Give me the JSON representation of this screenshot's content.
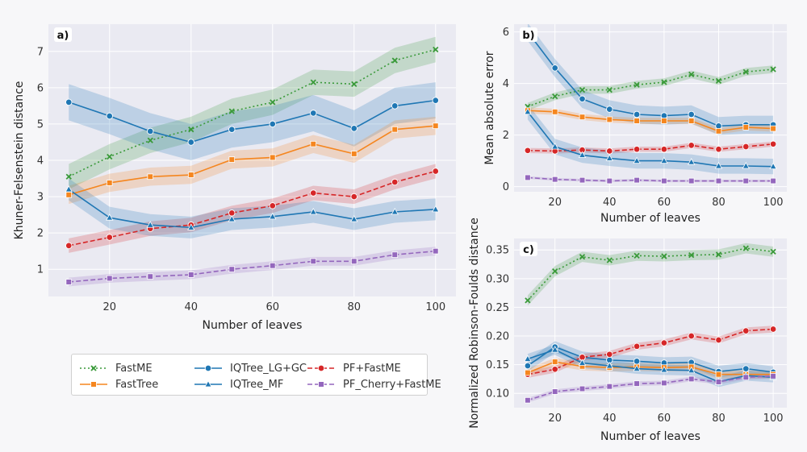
{
  "chart_data": [
    {
      "panel": "a)",
      "type": "line",
      "xlabel": "Number of leaves",
      "ylabel": "Khuner-Felsenstein distance",
      "xlim": [
        5,
        105
      ],
      "ylim": [
        0.25,
        7.75
      ],
      "xticks": [
        20,
        40,
        60,
        80,
        100
      ],
      "yticks": [
        1,
        2,
        3,
        4,
        5,
        6,
        7
      ],
      "grid": true,
      "x": [
        10,
        20,
        30,
        40,
        50,
        60,
        70,
        80,
        90,
        100
      ],
      "series": [
        {
          "name": "FastME",
          "values": [
            3.55,
            4.1,
            4.55,
            4.85,
            5.35,
            5.6,
            6.15,
            6.1,
            6.75,
            7.05
          ],
          "band": 0.35
        },
        {
          "name": "IQTree_LG+GC",
          "values": [
            5.6,
            5.22,
            4.8,
            4.5,
            4.85,
            5.0,
            5.3,
            4.88,
            5.5,
            5.65
          ],
          "band": 0.5
        },
        {
          "name": "PF+FastME",
          "values": [
            1.65,
            1.88,
            2.12,
            2.22,
            2.55,
            2.75,
            3.1,
            3.0,
            3.4,
            3.7
          ],
          "band": 0.2
        },
        {
          "name": "FastTree",
          "values": [
            3.05,
            3.38,
            3.55,
            3.6,
            4.02,
            4.08,
            4.45,
            4.18,
            4.85,
            4.95
          ],
          "band": 0.25
        },
        {
          "name": "IQTree_MF",
          "values": [
            3.2,
            2.42,
            2.22,
            2.15,
            2.38,
            2.45,
            2.58,
            2.38,
            2.58,
            2.65
          ],
          "band": 0.3
        },
        {
          "name": "PF_Cherry+FastME",
          "values": [
            0.65,
            0.75,
            0.8,
            0.85,
            1.0,
            1.1,
            1.22,
            1.22,
            1.4,
            1.5
          ],
          "band": 0.12
        }
      ]
    },
    {
      "panel": "b)",
      "type": "line",
      "xlabel": "Number of leaves",
      "ylabel": "Mean absolute error",
      "xlim": [
        5,
        105
      ],
      "ylim": [
        -0.2,
        6.3
      ],
      "xticks": [
        20,
        40,
        60,
        80,
        100
      ],
      "yticks": [
        0,
        2,
        4,
        6
      ],
      "grid": true,
      "x": [
        10,
        20,
        30,
        40,
        50,
        60,
        70,
        80,
        90,
        100
      ],
      "series": [
        {
          "name": "FastME",
          "values": [
            3.1,
            3.5,
            3.75,
            3.75,
            3.95,
            4.05,
            4.35,
            4.1,
            4.45,
            4.55
          ],
          "band": 0.15
        },
        {
          "name": "IQTree_LG+GC",
          "values": [
            6.0,
            4.6,
            3.4,
            3.0,
            2.8,
            2.75,
            2.8,
            2.35,
            2.4,
            2.4
          ],
          "band": 0.35
        },
        {
          "name": "PF+FastME",
          "values": [
            1.4,
            1.38,
            1.42,
            1.38,
            1.45,
            1.45,
            1.6,
            1.45,
            1.55,
            1.65
          ],
          "band": 0.1
        },
        {
          "name": "FastTree",
          "values": [
            2.95,
            2.9,
            2.7,
            2.6,
            2.55,
            2.55,
            2.55,
            2.15,
            2.3,
            2.25
          ],
          "band": 0.12
        },
        {
          "name": "IQTree_MF",
          "values": [
            2.9,
            1.55,
            1.22,
            1.1,
            1.0,
            1.0,
            0.95,
            0.8,
            0.8,
            0.78
          ],
          "band": 0.3
        },
        {
          "name": "PF_Cherry+FastME",
          "values": [
            0.35,
            0.28,
            0.25,
            0.22,
            0.25,
            0.22,
            0.22,
            0.22,
            0.22,
            0.22
          ],
          "band": 0.05
        }
      ]
    },
    {
      "panel": "c)",
      "type": "line",
      "xlabel": "Number of leaves",
      "ylabel": "Normalized Robinson-Foulds distance",
      "xlim": [
        5,
        105
      ],
      "ylim": [
        0.075,
        0.37
      ],
      "xticks": [
        20,
        40,
        60,
        80,
        100
      ],
      "yticks": [
        0.1,
        0.15,
        0.2,
        0.25,
        0.3,
        0.35
      ],
      "yticklabels": [
        "0.10",
        "0.15",
        "0.20",
        "0.25",
        "0.30",
        "0.35"
      ],
      "grid": true,
      "x": [
        10,
        20,
        30,
        40,
        50,
        60,
        70,
        80,
        90,
        100
      ],
      "series": [
        {
          "name": "FastME",
          "values": [
            0.262,
            0.313,
            0.338,
            0.332,
            0.34,
            0.339,
            0.341,
            0.342,
            0.353,
            0.347
          ],
          "band": 0.009
        },
        {
          "name": "IQTree_LG+GC",
          "values": [
            0.148,
            0.181,
            0.163,
            0.158,
            0.156,
            0.153,
            0.154,
            0.138,
            0.143,
            0.137
          ],
          "band": 0.01
        },
        {
          "name": "PF+FastME",
          "values": [
            0.133,
            0.142,
            0.163,
            0.168,
            0.182,
            0.188,
            0.2,
            0.193,
            0.209,
            0.212
          ],
          "band": 0.006
        },
        {
          "name": "FastTree",
          "values": [
            0.136,
            0.155,
            0.147,
            0.145,
            0.146,
            0.145,
            0.146,
            0.133,
            0.133,
            0.133
          ],
          "band": 0.007
        },
        {
          "name": "IQTree_MF",
          "values": [
            0.16,
            0.176,
            0.153,
            0.148,
            0.143,
            0.141,
            0.14,
            0.12,
            0.131,
            0.128
          ],
          "band": 0.009
        },
        {
          "name": "PF_Cherry+FastME",
          "values": [
            0.088,
            0.103,
            0.108,
            0.112,
            0.117,
            0.118,
            0.125,
            0.12,
            0.128,
            0.13
          ],
          "band": 0.004
        }
      ]
    }
  ],
  "styles": {
    "FastME": {
      "color": "#3a9a3a",
      "dash": "dot",
      "marker": "x"
    },
    "FastTree": {
      "color": "#f5861f",
      "dash": "solid",
      "marker": "square"
    },
    "IQTree_LG+GC": {
      "color": "#1f77b4",
      "dash": "solid",
      "marker": "circle"
    },
    "IQTree_MF": {
      "color": "#1f77b4",
      "dash": "solid",
      "marker": "triangle"
    },
    "PF+FastME": {
      "color": "#d62728",
      "dash": "dash",
      "marker": "circle"
    },
    "PF_Cherry+FastME": {
      "color": "#9467bd",
      "dash": "dash",
      "marker": "square"
    }
  },
  "plot_background": "#eaeaf2",
  "legend": {
    "items": [
      "FastME",
      "FastTree",
      "IQTree_LG+GC",
      "IQTree_MF",
      "PF+FastME",
      "PF_Cherry+FastME"
    ]
  }
}
